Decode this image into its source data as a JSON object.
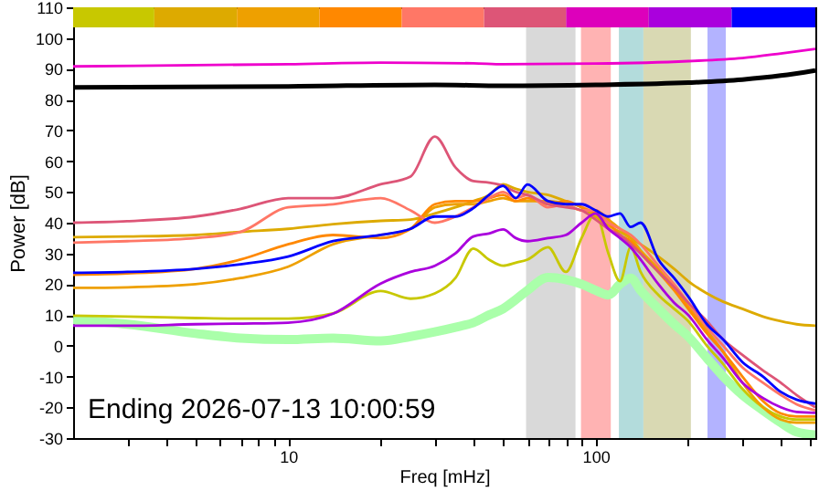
{
  "chart_data": {
    "type": "line",
    "xlabel": "Freq [mHz]",
    "ylabel": "Power [dB]",
    "log": "x",
    "xlim": [
      2,
      518
    ],
    "ylim": [
      -30,
      110
    ],
    "xticks": [
      {
        "value": 3,
        "label": null
      },
      {
        "value": 4,
        "label": null
      },
      {
        "value": 5,
        "label": null
      },
      {
        "value": 6,
        "label": null
      },
      {
        "value": 7,
        "label": null
      },
      {
        "value": 8,
        "label": null
      },
      {
        "value": 9,
        "label": null
      },
      10,
      {
        "value": 20,
        "label": null
      },
      {
        "value": 30,
        "label": null
      },
      {
        "value": 40,
        "label": null
      },
      {
        "value": 50,
        "label": null
      },
      {
        "value": 60,
        "label": null
      },
      {
        "value": 70,
        "label": null
      },
      {
        "value": 80,
        "label": null
      },
      {
        "value": 90,
        "label": null
      },
      100,
      {
        "value": 200,
        "label": null
      },
      {
        "value": 300,
        "label": null
      },
      {
        "value": 400,
        "label": null
      },
      {
        "value": 500,
        "label": null
      }
    ],
    "yticks": [
      -30,
      -20,
      -10,
      0,
      10,
      20,
      30,
      40,
      50,
      60,
      70,
      80,
      90,
      100,
      110
    ],
    "annotations": [
      "Ending 2026-07-13 10:00:59"
    ],
    "bands": [
      {
        "axis": "x",
        "from": 59.4,
        "to": 86,
        "color": "#d9d9d9"
      },
      {
        "axis": "x",
        "from": 89.6,
        "to": 112,
        "color": "#ffb3b3"
      },
      {
        "axis": "x",
        "from": 119,
        "to": 143,
        "color": "#b3dcdc"
      },
      {
        "axis": "x",
        "from": 143,
        "to": 204,
        "color": "#d9d9b3"
      },
      {
        "axis": "x",
        "from": 231,
        "to": 265,
        "color": "#b3b3ff"
      }
    ],
    "x": [
      2,
      3,
      5,
      7,
      10,
      14,
      20,
      25,
      30,
      35,
      40,
      45,
      50,
      55,
      60,
      70,
      80,
      90,
      100,
      110,
      120,
      130,
      140,
      160,
      180,
      200,
      230,
      260,
      300,
      350,
      400,
      450,
      518
    ],
    "series": [
      {
        "type": "bar",
        "x": [
          2.7,
          5.0,
          9.3,
          17.2,
          31.9,
          59,
          109,
          203,
          378
        ],
        "base": [
          103.5,
          103.5,
          103.5,
          103.5,
          103.5,
          103.5,
          103.5,
          103.5,
          103.5
        ],
        "values": [
          6.5,
          6.5,
          6.5,
          6.5,
          6.5,
          6.5,
          6.5,
          6.5,
          6.5
        ],
        "colors": [
          "#c8c800",
          "#ddaa00",
          "#eea000",
          "#ff8800",
          "#ff7766",
          "#dd5577",
          "#dd00bb",
          "#aa00dd",
          "#0000ff"
        ]
      },
      {
        "color": "#ee00cc",
        "x": [
          2,
          5,
          10,
          20,
          40,
          50,
          100,
          200,
          300,
          400,
          518
        ],
        "values": [
          90.8,
          91.2,
          91.5,
          92,
          91.8,
          91.5,
          91.7,
          92.5,
          93.5,
          95,
          96.5
        ]
      },
      {
        "color": "#000000",
        "x": [
          2,
          10,
          30,
          50,
          100,
          200,
          300,
          400,
          518
        ],
        "values": [
          84,
          84.3,
          84.8,
          84.5,
          84.8,
          85.5,
          86.5,
          87.8,
          89.5
        ]
      },
      {
        "color": "#aaffaa",
        "values": [
          8.4,
          7,
          4,
          2.5,
          2,
          2.5,
          1.6,
          3,
          4.5,
          6,
          7.5,
          10,
          12,
          15,
          18,
          22.2,
          21.5,
          20,
          18,
          16.5,
          20,
          22,
          18,
          12,
          7,
          3,
          -4,
          -10,
          -16,
          -21,
          -25,
          -28,
          -29
        ]
      },
      {
        "color": "#c8c800",
        "values": [
          9.8,
          9.5,
          9,
          8.8,
          8.8,
          10.5,
          17.8,
          15.3,
          17,
          22,
          31.6,
          28,
          26,
          27,
          28,
          32,
          24,
          35,
          43,
          30,
          21,
          32,
          24,
          16.5,
          12,
          8,
          0,
          -6,
          -14,
          -20,
          -23,
          -24,
          -24
        ]
      },
      {
        "color": "#ddaa00",
        "values": [
          35.3,
          35.5,
          36,
          37,
          38,
          39.5,
          40.6,
          41,
          43,
          45,
          47,
          49,
          52.5,
          51,
          50,
          49,
          47,
          45,
          42,
          39,
          37,
          35,
          33,
          29,
          25,
          21,
          17,
          14.3,
          12,
          9.5,
          8,
          7,
          6.5
        ]
      },
      {
        "color": "#eea000",
        "values": [
          18.8,
          19,
          20,
          22,
          25.7,
          33,
          36,
          38,
          45,
          46,
          46,
          47,
          48,
          47,
          47,
          47,
          46,
          44,
          44,
          41,
          38,
          35,
          31,
          25,
          19,
          13,
          5,
          -2,
          -12,
          -20,
          -24,
          -25,
          -25
        ]
      },
      {
        "color": "#ff8800",
        "values": [
          23.1,
          23.5,
          25,
          28,
          33,
          36,
          35,
          38,
          46,
          47,
          47,
          48,
          49,
          47,
          48,
          46,
          47,
          45,
          43,
          40,
          36,
          34,
          30,
          24,
          18,
          12,
          4,
          -2,
          -10,
          -18,
          -22,
          -23,
          -23
        ]
      },
      {
        "color": "#ff7766",
        "values": [
          33.5,
          34,
          35,
          37,
          45,
          46,
          48,
          44,
          40,
          42,
          45,
          48,
          50,
          48,
          49,
          45,
          46,
          44,
          44,
          40,
          38,
          36,
          33,
          26,
          20,
          14,
          6,
          0,
          -7,
          -12,
          -16,
          -19,
          -21
        ]
      },
      {
        "color": "#dd5577",
        "values": [
          40,
          40.5,
          42,
          44.5,
          48,
          48,
          52.5,
          55,
          68,
          58,
          53.5,
          53,
          52,
          50,
          49,
          46,
          45,
          44,
          41,
          38,
          36,
          33,
          30,
          24,
          19,
          14,
          8,
          2,
          -3,
          -8,
          -12,
          -16,
          -20
        ]
      },
      {
        "color": "#aa00dd",
        "values": [
          6.5,
          6.5,
          7,
          7.2,
          7.5,
          10.4,
          20.2,
          24,
          26,
          30,
          35.5,
          36.5,
          37.8,
          35,
          34,
          35,
          36,
          40,
          43,
          38,
          35,
          32,
          28,
          20,
          14,
          10,
          2,
          -4,
          -12,
          -17,
          -20,
          -21.5,
          -21.8
        ]
      },
      {
        "color": "#0000ff",
        "values": [
          23.7,
          24,
          25,
          26.5,
          29,
          34,
          36,
          38,
          42,
          42,
          44.7,
          49,
          52,
          48,
          52.4,
          47,
          46,
          46,
          44,
          42,
          43,
          38.6,
          40,
          28,
          22,
          16,
          7,
          2,
          -5.3,
          -10,
          -15,
          -17.5,
          -18.8
        ]
      }
    ]
  }
}
